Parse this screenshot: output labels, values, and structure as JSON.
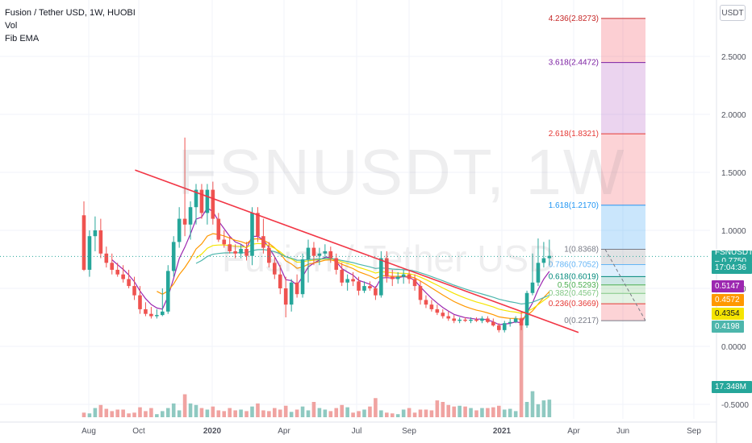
{
  "legend": {
    "title": "Fusion / Tether USD, 1W, HUOBI",
    "vol": "Vol",
    "fib": "Fib EMA"
  },
  "currency_badge": "USDT",
  "watermark": {
    "symbol": "FSNUSDT, 1W",
    "name": "Fusion / Tether USD"
  },
  "price_tags": {
    "symbol_tag": "FSNUSDT – 0.7750",
    "countdown": "17:04:36",
    "ema1": "0.5147",
    "ema2": "0.4572",
    "ema3": "0.4354",
    "ema4": "0.4198",
    "volume": "17.348M"
  },
  "colors": {
    "up": "#26a69a",
    "down": "#ef5350",
    "vol_up": "#8fc9c1",
    "vol_down": "#f0a3a1",
    "trendline": "#f23645",
    "last_price": "#26a69a",
    "ema1": "#9c27b0",
    "ema2": "#ff9800",
    "ema3": "#f5e400",
    "ema4": "#4db6ac"
  },
  "chart_data": {
    "type": "candlestick",
    "symbol": "FSNUSDT",
    "interval": "1W",
    "exchange": "HUOBI",
    "last_price": 0.775,
    "y_axis": {
      "min": -0.55,
      "max": 2.9,
      "ticks": [
        -0.5,
        0.0,
        0.5,
        1.0,
        1.5,
        2.0,
        2.5
      ],
      "tick_labels": [
        "-0.5000",
        "0.0000",
        "0.5000",
        "1.0000",
        "1.5000",
        "2.0000",
        "2.5000"
      ]
    },
    "x_axis": {
      "labels": [
        "Aug",
        "Oct",
        "2020",
        "Apr",
        "Jul",
        "Sep",
        "2021",
        "Apr",
        "Jun",
        "Sep"
      ]
    },
    "candles": [
      [
        1.13,
        1.25,
        0.65,
        0.66
      ],
      [
        0.66,
        1.0,
        0.6,
        0.95
      ],
      [
        0.95,
        1.12,
        0.82,
        1.0
      ],
      [
        1.0,
        1.1,
        0.76,
        0.8
      ],
      [
        0.8,
        0.86,
        0.68,
        0.72
      ],
      [
        0.72,
        0.8,
        0.62,
        0.66
      ],
      [
        0.66,
        0.72,
        0.6,
        0.62
      ],
      [
        0.62,
        0.7,
        0.55,
        0.58
      ],
      [
        0.58,
        0.66,
        0.5,
        0.52
      ],
      [
        0.52,
        0.6,
        0.4,
        0.44
      ],
      [
        0.44,
        0.52,
        0.28,
        0.32
      ],
      [
        0.32,
        0.38,
        0.26,
        0.28
      ],
      [
        0.28,
        0.34,
        0.24,
        0.26
      ],
      [
        0.26,
        0.32,
        0.24,
        0.27
      ],
      [
        0.27,
        0.5,
        0.26,
        0.3
      ],
      [
        0.3,
        0.7,
        0.28,
        0.65
      ],
      [
        0.65,
        0.95,
        0.6,
        0.9
      ],
      [
        0.9,
        1.2,
        0.85,
        1.1
      ],
      [
        1.1,
        1.8,
        0.95,
        1.05
      ],
      [
        1.05,
        1.25,
        0.92,
        1.2
      ],
      [
        1.2,
        1.4,
        1.05,
        1.35
      ],
      [
        1.35,
        1.4,
        1.1,
        1.15
      ],
      [
        1.15,
        1.4,
        1.05,
        1.35
      ],
      [
        1.35,
        1.42,
        1.05,
        1.1
      ],
      [
        1.1,
        1.15,
        0.9,
        0.92
      ],
      [
        0.92,
        1.0,
        0.85,
        0.88
      ],
      [
        0.88,
        0.95,
        0.8,
        0.82
      ],
      [
        0.82,
        0.88,
        0.76,
        0.8
      ],
      [
        0.8,
        0.88,
        0.76,
        0.84
      ],
      [
        0.84,
        0.9,
        0.74,
        0.78
      ],
      [
        0.78,
        1.2,
        0.7,
        1.15
      ],
      [
        1.15,
        1.2,
        0.9,
        0.95
      ],
      [
        0.95,
        1.1,
        0.8,
        0.85
      ],
      [
        0.85,
        0.9,
        0.68,
        0.72
      ],
      [
        0.72,
        0.78,
        0.58,
        0.62
      ],
      [
        0.62,
        0.7,
        0.45,
        0.5
      ],
      [
        0.5,
        0.6,
        0.25,
        0.36
      ],
      [
        0.36,
        0.58,
        0.3,
        0.55
      ],
      [
        0.55,
        0.62,
        0.42,
        0.45
      ],
      [
        0.45,
        0.8,
        0.42,
        0.75
      ],
      [
        0.75,
        0.92,
        0.55,
        0.85
      ],
      [
        0.85,
        0.9,
        0.7,
        0.78
      ],
      [
        0.78,
        0.85,
        0.7,
        0.8
      ],
      [
        0.8,
        0.88,
        0.76,
        0.82
      ],
      [
        0.82,
        0.86,
        0.72,
        0.76
      ],
      [
        0.76,
        0.8,
        0.62,
        0.66
      ],
      [
        0.66,
        0.72,
        0.52,
        0.55
      ],
      [
        0.55,
        0.62,
        0.48,
        0.58
      ],
      [
        0.58,
        0.64,
        0.52,
        0.56
      ],
      [
        0.56,
        0.6,
        0.44,
        0.48
      ],
      [
        0.48,
        0.56,
        0.46,
        0.52
      ],
      [
        0.52,
        0.56,
        0.48,
        0.5
      ],
      [
        0.5,
        0.52,
        0.4,
        0.44
      ],
      [
        0.44,
        0.82,
        0.42,
        0.76
      ],
      [
        0.76,
        0.82,
        0.55,
        0.6
      ],
      [
        0.6,
        0.66,
        0.52,
        0.58
      ],
      [
        0.58,
        0.64,
        0.54,
        0.6
      ],
      [
        0.6,
        0.66,
        0.54,
        0.62
      ],
      [
        0.62,
        0.66,
        0.54,
        0.58
      ],
      [
        0.58,
        0.62,
        0.48,
        0.52
      ],
      [
        0.52,
        0.56,
        0.36,
        0.4
      ],
      [
        0.4,
        0.44,
        0.33,
        0.36
      ],
      [
        0.36,
        0.4,
        0.3,
        0.32
      ],
      [
        0.32,
        0.36,
        0.27,
        0.29
      ],
      [
        0.29,
        0.32,
        0.24,
        0.26
      ],
      [
        0.26,
        0.3,
        0.22,
        0.24
      ],
      [
        0.24,
        0.27,
        0.2,
        0.22
      ],
      [
        0.22,
        0.25,
        0.2,
        0.23
      ],
      [
        0.23,
        0.25,
        0.21,
        0.22
      ],
      [
        0.22,
        0.25,
        0.2,
        0.23
      ],
      [
        0.23,
        0.25,
        0.21,
        0.22
      ],
      [
        0.22,
        0.26,
        0.2,
        0.24
      ],
      [
        0.24,
        0.26,
        0.2,
        0.21
      ],
      [
        0.21,
        0.24,
        0.17,
        0.18
      ],
      [
        0.18,
        0.2,
        0.12,
        0.14
      ],
      [
        0.14,
        0.22,
        0.12,
        0.2
      ],
      [
        0.2,
        0.24,
        0.17,
        0.21
      ],
      [
        0.21,
        0.26,
        0.2,
        0.24
      ],
      [
        0.24,
        0.3,
        0.14,
        0.18
      ],
      [
        0.18,
        0.48,
        0.16,
        0.46
      ],
      [
        0.46,
        0.8,
        0.44,
        0.55
      ],
      [
        0.55,
        0.93,
        0.52,
        0.72
      ],
      [
        0.72,
        0.9,
        0.68,
        0.76
      ],
      [
        0.76,
        0.92,
        0.7,
        0.78
      ]
    ],
    "volume": [
      6,
      5,
      12,
      16,
      11,
      8,
      10,
      10,
      5,
      6,
      13,
      8,
      12,
      4,
      8,
      12,
      18,
      9,
      30,
      18,
      16,
      12,
      10,
      14,
      9,
      8,
      12,
      9,
      10,
      8,
      14,
      18,
      9,
      8,
      12,
      10,
      15,
      7,
      10,
      14,
      9,
      20,
      12,
      10,
      8,
      12,
      16,
      13,
      6,
      8,
      10,
      14,
      25,
      9,
      6,
      5,
      4,
      10,
      12,
      6,
      10,
      10,
      9,
      22,
      20,
      16,
      14,
      15,
      14,
      12,
      9,
      12,
      12,
      13,
      15,
      10,
      11,
      8,
      130,
      20,
      34,
      17,
      22,
      23
    ],
    "trendline": {
      "start_index": 12,
      "start_value": 1.52,
      "end_index": 81,
      "end_value": 0.12
    },
    "ema_series": [
      {
        "color": "ema1",
        "period_hint": "fast"
      },
      {
        "color": "ema2",
        "period_hint": "mid"
      },
      {
        "color": "ema3",
        "period_hint": "slow"
      },
      {
        "color": "ema4",
        "period_hint": "slowest"
      }
    ],
    "fib_levels": [
      {
        "label": "4.236(2.8273)",
        "value": 2.8273,
        "line": "#c62828",
        "fill": "rgba(242,54,69,0.24)"
      },
      {
        "label": "3.618(2.4472)",
        "value": 2.4472,
        "line": "#7b1fa2",
        "fill": "rgba(156,39,176,0.20)"
      },
      {
        "label": "2.618(1.8321)",
        "value": 1.8321,
        "line": "#e53935",
        "fill": "rgba(242,54,69,0.22)"
      },
      {
        "label": "1.618(1.2170)",
        "value": 1.217,
        "line": "#2196f3",
        "fill": "rgba(33,150,243,0.24)"
      },
      {
        "label": "1(0.8368)",
        "value": 0.8368,
        "line": "#787b86",
        "fill": "rgba(120,123,134,0.22)"
      },
      {
        "label": "0.786(0.7052)",
        "value": 0.7052,
        "line": "#64b5f6",
        "fill": "rgba(100,181,246,0.22)"
      },
      {
        "label": "0.618(0.6019)",
        "value": 0.6019,
        "line": "#00897b",
        "fill": "rgba(0,137,123,0.20)"
      },
      {
        "label": "0.5(0.5293)",
        "value": 0.5293,
        "line": "#4caf50",
        "fill": "rgba(76,175,80,0.20)"
      },
      {
        "label": "0.382(0.4567)",
        "value": 0.4567,
        "line": "#81c784",
        "fill": "rgba(129,199,132,0.22)"
      },
      {
        "label": "0.236(0.3669)",
        "value": 0.3669,
        "line": "#e53935",
        "fill": "rgba(242,54,69,0.22)"
      },
      {
        "label": "0(0.2217)",
        "value": 0.2217,
        "line": "#787b86",
        "fill": null
      }
    ]
  }
}
